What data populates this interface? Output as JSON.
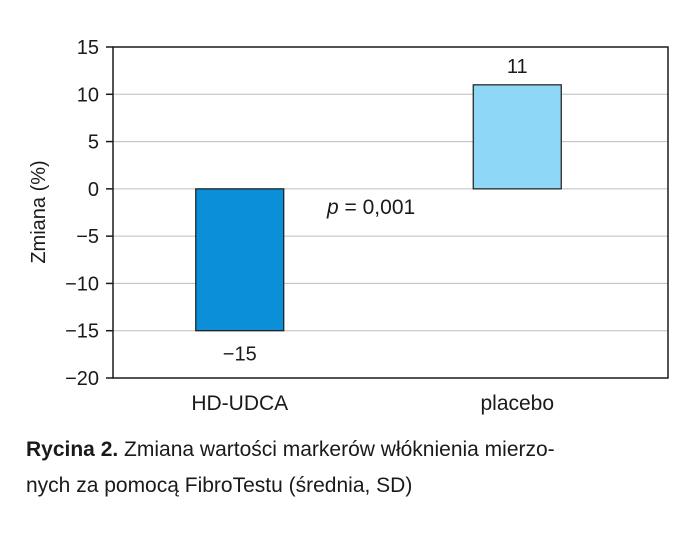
{
  "chart_data": {
    "type": "bar",
    "categories": [
      "HD-UDCA",
      "placebo"
    ],
    "values": [
      -15,
      11
    ],
    "data_labels": [
      "−15",
      "11"
    ],
    "colors": [
      "#0b8fd6",
      "#8fd7f7"
    ],
    "ylabel": "Zmiana (%)",
    "ylim": [
      -20,
      15
    ],
    "yticks": [
      15,
      10,
      5,
      0,
      -5,
      -10,
      -15,
      -20
    ],
    "ytick_labels": [
      "15",
      "10",
      "5",
      "0",
      "−5",
      "−10",
      "−15",
      "−20"
    ],
    "grid": true,
    "annotation": {
      "italic": "p",
      "rest": " = 0,001"
    }
  },
  "caption": {
    "bold": "Rycina 2.",
    "text": " Zmiana wartości markerów włóknienia mierzo-nych za pomocą FibroTestu (średnia, SD)",
    "line1": " Zmiana wartości markerów włóknienia mierzo-",
    "line2": "nych za pomocą FibroTestu (średnia, SD)"
  }
}
